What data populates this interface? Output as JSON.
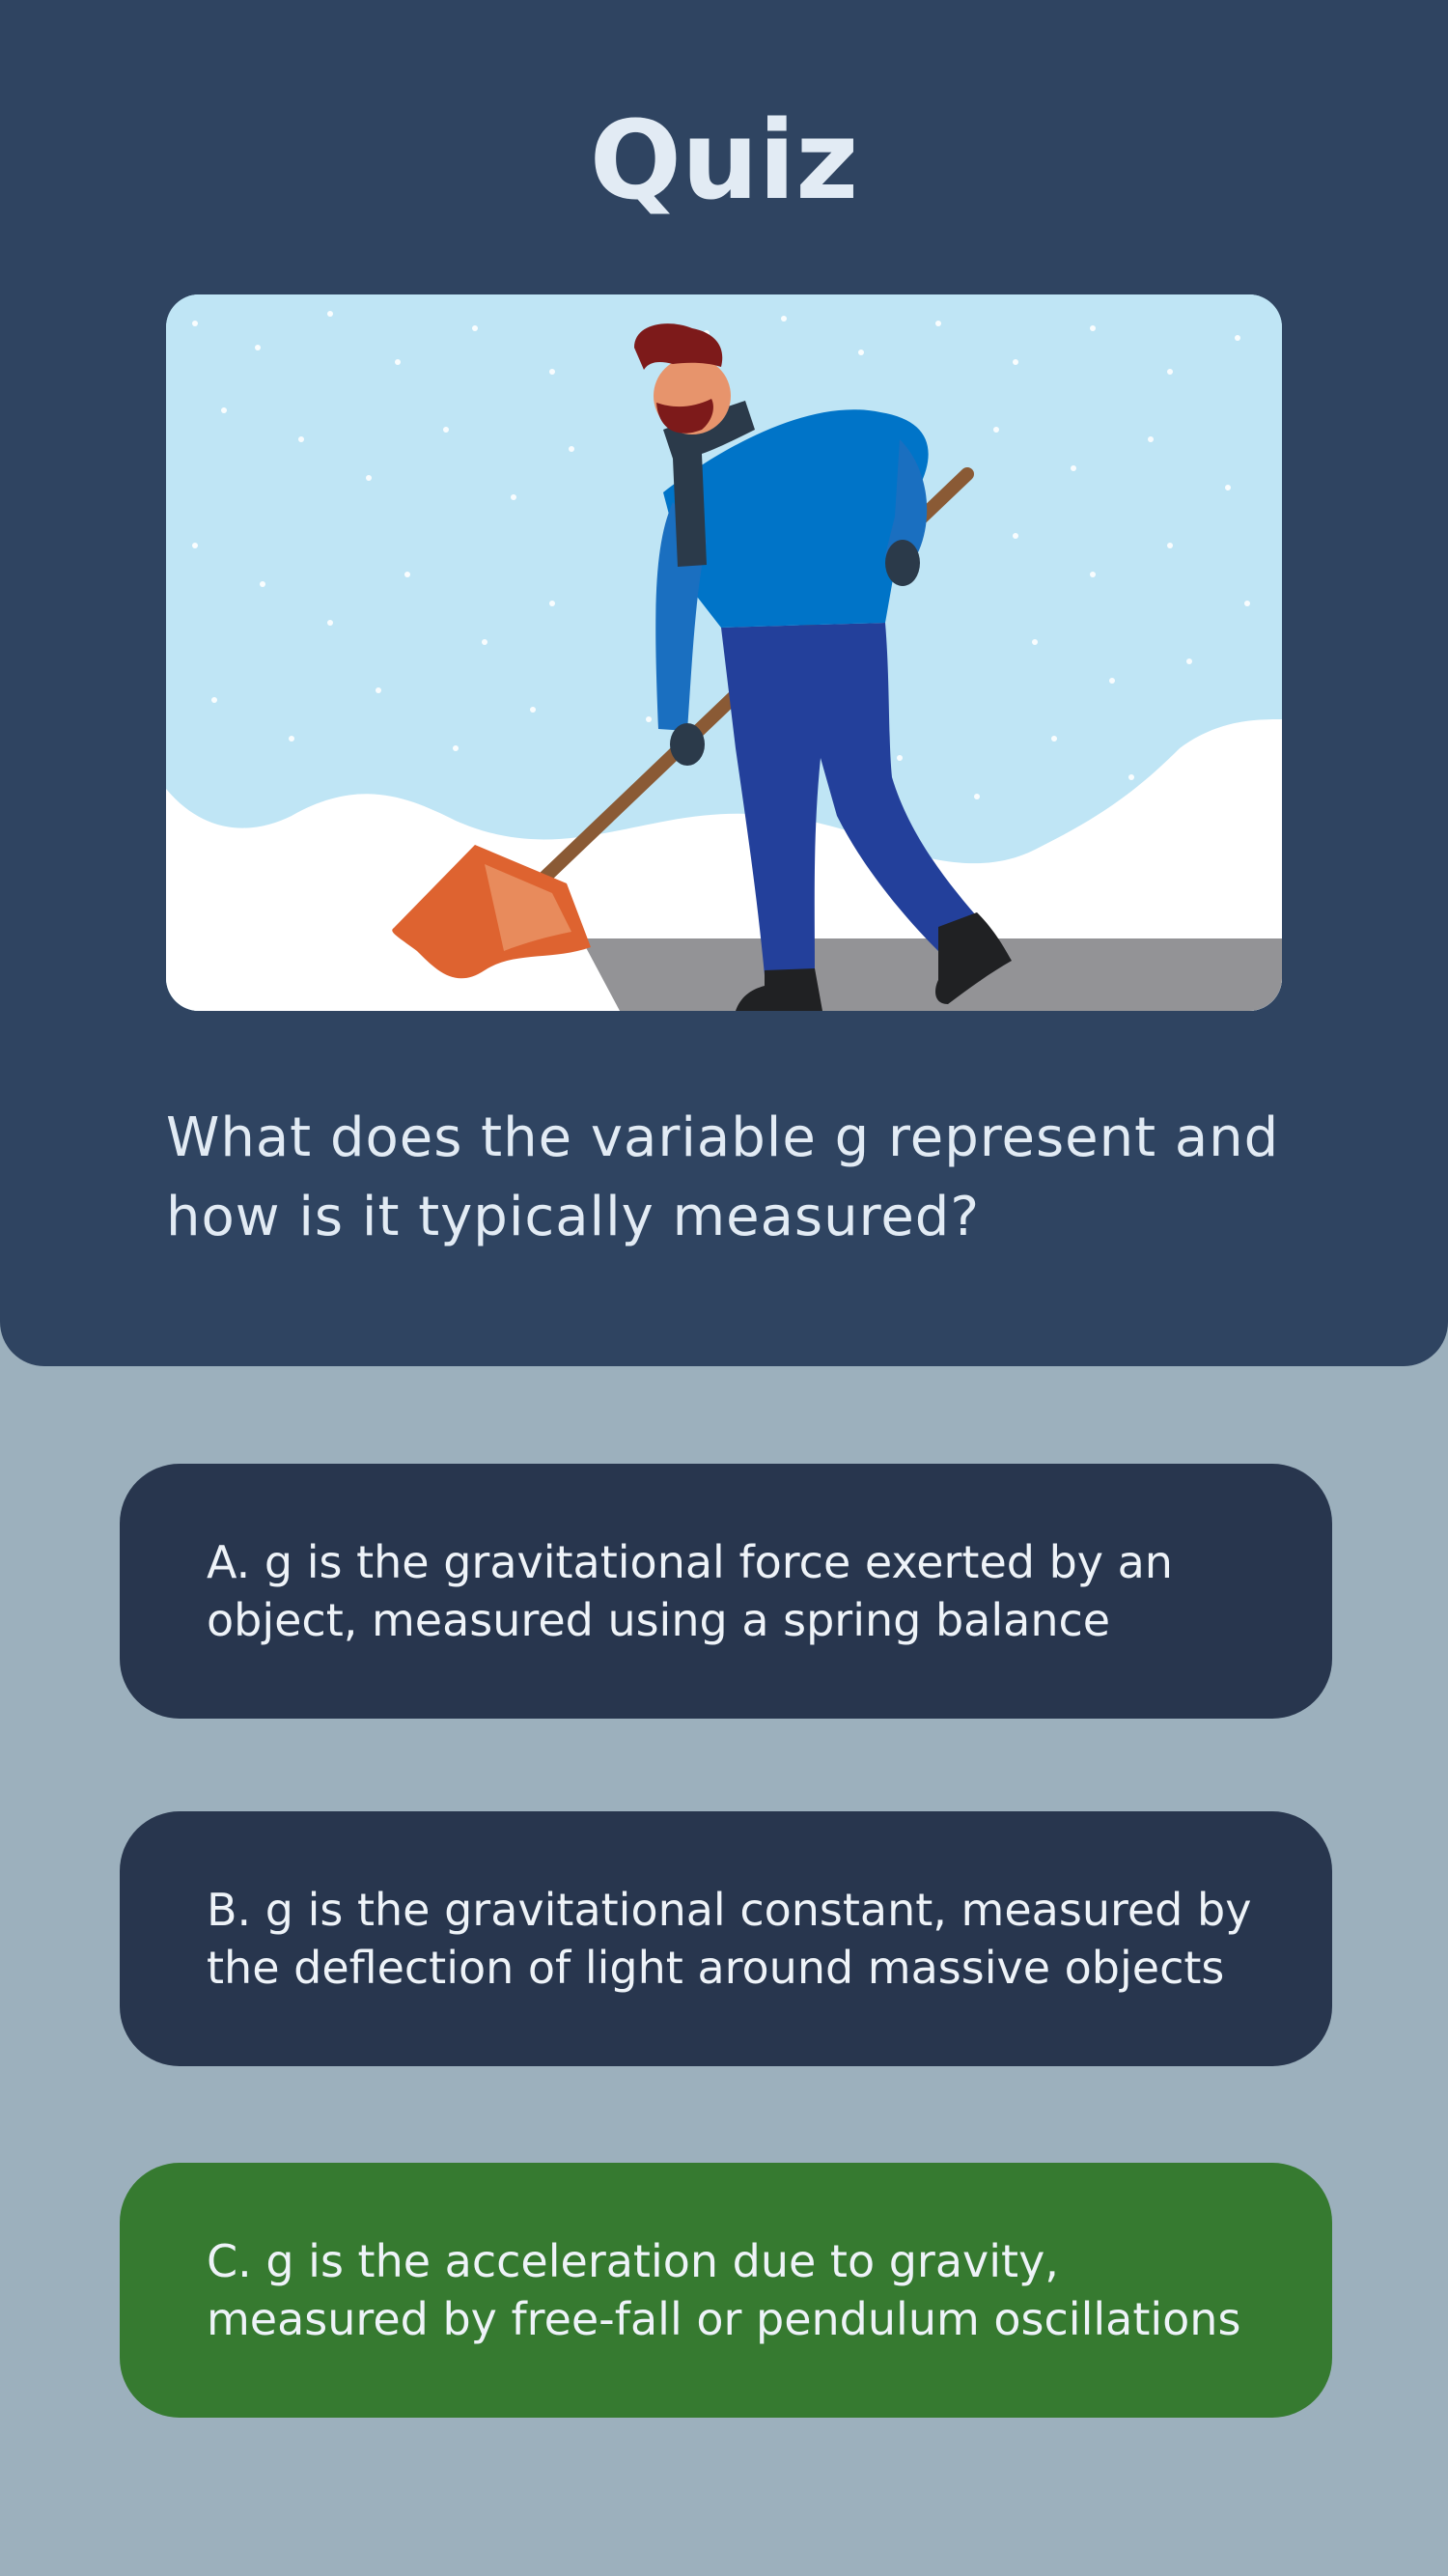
{
  "quiz": {
    "title": "Quiz",
    "image_alt": "Man shoveling snow",
    "question": "What does the variable g represent and how is it typically measured?",
    "answers": [
      {
        "label": "A. g is the gravitational force exerted by an object, measured using a spring balance",
        "state": "default"
      },
      {
        "label": "B. g is the gravitational constant, measured by the deflection of light around massive objects",
        "state": "default"
      },
      {
        "label": "C. g is the acceleration due to gravity, measured by free-fall or pendulum oscillations",
        "state": "correct"
      }
    ]
  },
  "colors": {
    "header_bg": "#2f4461",
    "page_bg": "#9cb0bd",
    "answer_bg": "#28364e",
    "correct_bg": "#367a30",
    "text": "#e2ebf4"
  }
}
